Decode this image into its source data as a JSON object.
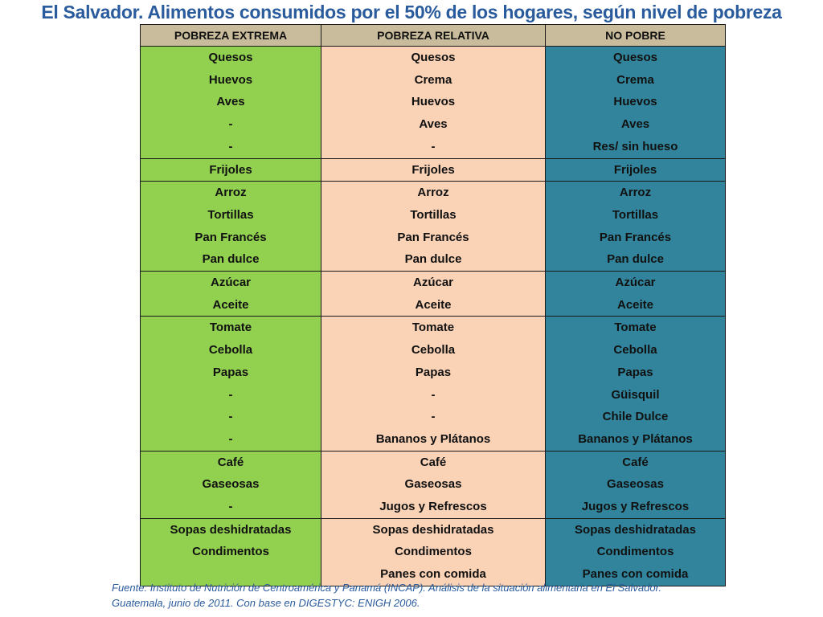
{
  "title": "El Salvador. Alimentos consumidos por el 50% de los hogares, según nivel de pobreza",
  "columns": [
    "POBREZA EXTREMA",
    "POBREZA RELATIVA",
    "NO POBRE"
  ],
  "colors": {
    "header": "#c8bc9c",
    "pobreza_extrema": "#92d050",
    "pobreza_relativa": "#fad2b6",
    "no_pobre": "#31849b",
    "title_text": "#2a5b9c"
  },
  "groups": [
    [
      [
        "Quesos",
        "Quesos",
        "Quesos"
      ],
      [
        "Huevos",
        "Crema",
        "Crema"
      ],
      [
        "Aves",
        "Huevos",
        "Huevos"
      ],
      [
        "-",
        "Aves",
        "Aves"
      ],
      [
        "-",
        "-",
        "Res/ sin hueso"
      ]
    ],
    [
      [
        "Frijoles",
        "Frijoles",
        "Frijoles"
      ]
    ],
    [
      [
        "Arroz",
        "Arroz",
        "Arroz"
      ],
      [
        "Tortillas",
        "Tortillas",
        "Tortillas"
      ],
      [
        "Pan Francés",
        "Pan Francés",
        "Pan Francés"
      ],
      [
        "Pan dulce",
        "Pan dulce",
        "Pan dulce"
      ]
    ],
    [
      [
        "Azúcar",
        "Azúcar",
        "Azúcar"
      ],
      [
        "Aceite",
        "Aceite",
        "Aceite"
      ]
    ],
    [
      [
        "Tomate",
        "Tomate",
        "Tomate"
      ],
      [
        "Cebolla",
        "Cebolla",
        "Cebolla"
      ],
      [
        "Papas",
        "Papas",
        "Papas"
      ],
      [
        "-",
        "-",
        "Güisquil"
      ],
      [
        "-",
        "-",
        "Chile Dulce"
      ],
      [
        "-",
        "Bananos y Plátanos",
        "Bananos y Plátanos"
      ]
    ],
    [
      [
        "Café",
        "Café",
        "Café"
      ],
      [
        "Gaseosas",
        "Gaseosas",
        "Gaseosas"
      ],
      [
        "-",
        "Jugos y Refrescos",
        "Jugos y Refrescos"
      ]
    ],
    [
      [
        "Sopas deshidratadas",
        "Sopas deshidratadas",
        "Sopas deshidratadas"
      ],
      [
        "Condimentos",
        "Condimentos",
        "Condimentos"
      ],
      [
        "",
        "Panes con comida",
        "Panes con comida"
      ]
    ]
  ],
  "footnote": {
    "line1": "Fuente: Instituto de Nutrición de Centroamérica y Panamá (INCAP). Análisis de la situación alimentaria en El Salvador.",
    "line2": "Guatemala, junio de 2011. Con base en DIGESTYC: ENIGH 2006."
  }
}
